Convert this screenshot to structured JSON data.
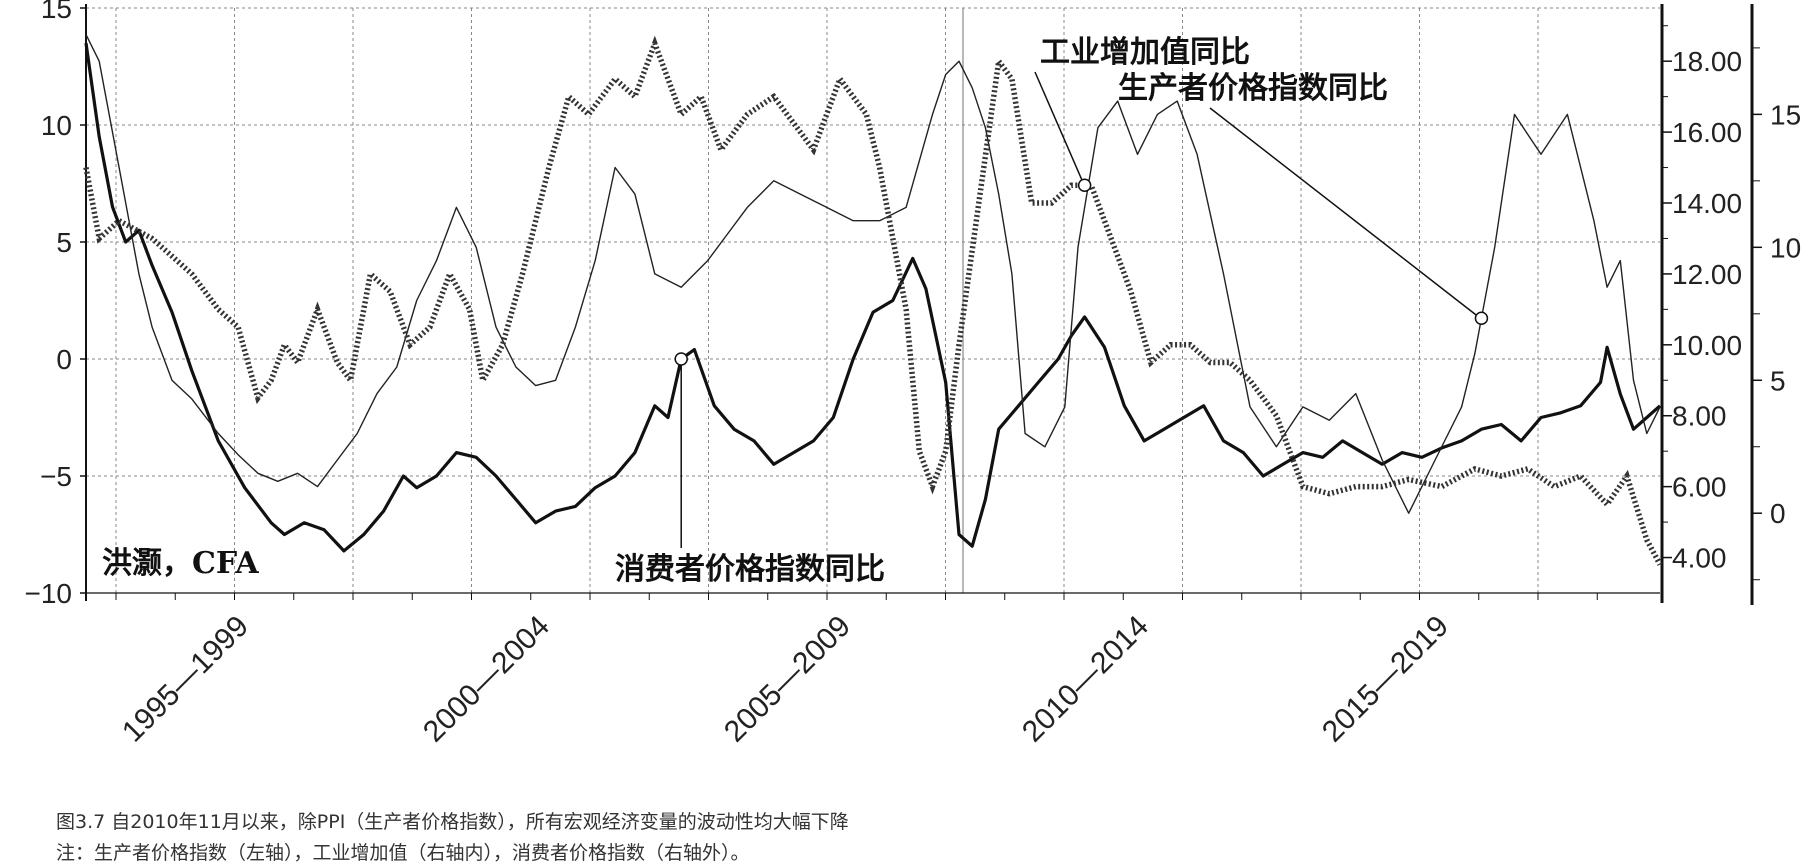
{
  "caption": {
    "title": "图3.7 自2010年11月以来，除PPI（生产者价格指数），所有宏观经济变量的波动性均大幅下降",
    "note": "注：生产者价格指数（左轴），工业增加值（右轴内），消费者价格指数（右轴外）。"
  },
  "chart_data": {
    "type": "line",
    "x_tick_labels": [
      "1995—1999",
      "2000—2004",
      "2005—2009",
      "2010—2014",
      "2015—2019"
    ],
    "left_axis": {
      "ticks": [
        15,
        10,
        5,
        0,
        -5,
        -10
      ],
      "ylim": [
        -10,
        15
      ]
    },
    "right_inner_axis": {
      "ticks": [
        "18.00",
        "16.00",
        "14.00",
        "12.00",
        "10.00",
        "8.00",
        "6.00",
        "4.00"
      ],
      "ylim": [
        3,
        19.5
      ]
    },
    "right_outer_axis": {
      "ticks": [
        15,
        10,
        5,
        0
      ],
      "ylim": [
        -3,
        19
      ]
    },
    "grid": true,
    "annotations": {
      "industrial": "工业增加值同比",
      "ppi": "生产者价格指数同比",
      "cpi": "消费者价格指数同比",
      "author": "洪灏，CFA"
    },
    "x_range": [
      1996.0,
      2019.8
    ],
    "series": [
      {
        "key": "ppi",
        "style": "thick",
        "axis": "left",
        "x": [
          1996.0,
          1996.2,
          1996.4,
          1996.6,
          1996.8,
          1997.0,
          1997.3,
          1997.6,
          1998.0,
          1998.4,
          1998.8,
          1999.0,
          1999.3,
          1999.6,
          1999.9,
          2000.2,
          2000.5,
          2000.8,
          2001.0,
          2001.3,
          2001.6,
          2001.9,
          2002.2,
          2002.5,
          2002.8,
          2003.1,
          2003.4,
          2003.7,
          2004.0,
          2004.3,
          2004.6,
          2004.8,
          2005.0,
          2005.2,
          2005.5,
          2005.8,
          2006.1,
          2006.4,
          2006.7,
          2007.0,
          2007.3,
          2007.6,
          2007.9,
          2008.2,
          2008.5,
          2008.7,
          2009.0,
          2009.2,
          2009.4,
          2009.6,
          2009.8,
          2010.1,
          2010.4,
          2010.7,
          2010.9,
          2011.1,
          2011.4,
          2011.7,
          2012.0,
          2012.3,
          2012.6,
          2012.9,
          2013.2,
          2013.5,
          2013.8,
          2014.1,
          2014.4,
          2014.7,
          2015.0,
          2015.3,
          2015.6,
          2015.9,
          2016.2,
          2016.5,
          2016.8,
          2017.1,
          2017.4,
          2017.7,
          2018.0,
          2018.3,
          2018.6,
          2018.9,
          2019.0,
          2019.2,
          2019.4,
          2019.6,
          2019.8
        ],
        "values": [
          13.5,
          9.5,
          6.5,
          5.0,
          5.5,
          4.0,
          2.0,
          -0.5,
          -3.5,
          -5.5,
          -7.0,
          -7.5,
          -7.0,
          -7.3,
          -8.2,
          -7.5,
          -6.5,
          -5.0,
          -5.5,
          -5.0,
          -4.0,
          -4.2,
          -5.0,
          -6.0,
          -7.0,
          -6.5,
          -6.3,
          -5.5,
          -5.0,
          -4.0,
          -2.0,
          -2.5,
          0.0,
          0.4,
          -2.0,
          -3.0,
          -3.5,
          -4.5,
          -4.0,
          -3.5,
          -2.5,
          0.0,
          2.0,
          2.5,
          4.3,
          3.0,
          -1.0,
          -7.5,
          -8.0,
          -6.0,
          -3.0,
          -2.0,
          -1.0,
          0.0,
          1.0,
          1.8,
          0.5,
          -2.0,
          -3.5,
          -3.0,
          -2.5,
          -2.0,
          -3.5,
          -4.0,
          -5.0,
          -4.5,
          -4.0,
          -4.2,
          -3.5,
          -4.0,
          -4.5,
          -4.0,
          -4.2,
          -3.8,
          -3.5,
          -3.0,
          -2.8,
          -3.5,
          -2.5,
          -2.3,
          -2.0,
          -1.0,
          0.5,
          -1.5,
          -3.0,
          -2.5,
          -2.0
        ]
      },
      {
        "key": "cpi",
        "style": "thin",
        "axis": "right_outer",
        "x": [
          1996.0,
          1996.2,
          1996.5,
          1996.8,
          1997.0,
          1997.3,
          1997.6,
          1998.0,
          1998.3,
          1998.6,
          1998.9,
          1999.2,
          1999.5,
          1999.8,
          2000.1,
          2000.4,
          2000.7,
          2001.0,
          2001.3,
          2001.6,
          2001.9,
          2002.2,
          2002.5,
          2002.8,
          2003.1,
          2003.4,
          2003.7,
          2004.0,
          2004.3,
          2004.6,
          2005.0,
          2005.4,
          2005.7,
          2006.0,
          2006.4,
          2006.8,
          2007.2,
          2007.6,
          2008.0,
          2008.4,
          2008.8,
          2009.0,
          2009.2,
          2009.4,
          2009.6,
          2009.8,
          2010.0,
          2010.2,
          2010.5,
          2010.8,
          2011.0,
          2011.3,
          2011.6,
          2011.9,
          2012.2,
          2012.5,
          2012.8,
          2013.2,
          2013.6,
          2014.0,
          2014.4,
          2014.8,
          2015.2,
          2015.6,
          2016.0,
          2016.4,
          2016.8,
          2017.0,
          2017.3,
          2017.6,
          2018.0,
          2018.4,
          2018.8,
          2019.0,
          2019.2,
          2019.4,
          2019.6,
          2019.8
        ],
        "values": [
          18.0,
          17.0,
          13.0,
          9.0,
          7.0,
          5.0,
          4.3,
          3.0,
          2.2,
          1.5,
          1.2,
          1.5,
          1.0,
          2.0,
          3.0,
          4.5,
          5.5,
          8.0,
          9.5,
          11.5,
          10.0,
          7.0,
          5.5,
          4.8,
          5.0,
          7.0,
          9.5,
          13.0,
          12.0,
          9.0,
          8.5,
          9.5,
          10.5,
          11.5,
          12.5,
          12.0,
          11.5,
          11.0,
          11.0,
          11.5,
          15.0,
          16.5,
          17.0,
          16.0,
          14.5,
          12.0,
          9.0,
          3.0,
          2.5,
          4.0,
          10.0,
          14.5,
          15.5,
          13.5,
          15.0,
          15.5,
          13.5,
          9.0,
          4.0,
          2.5,
          4.0,
          3.5,
          4.5,
          2.0,
          0.0,
          2.0,
          4.0,
          6.0,
          10.0,
          15.0,
          13.5,
          15.0,
          11.0,
          8.5,
          9.5,
          5.0,
          3.0,
          4.0
        ]
      },
      {
        "key": "industrial",
        "style": "dotted",
        "axis": "right_inner",
        "x": [
          1996.0,
          1996.2,
          1996.5,
          1996.8,
          1997.0,
          1997.3,
          1997.6,
          1998.0,
          1998.3,
          1998.6,
          1998.8,
          1999.0,
          1999.2,
          1999.5,
          1999.8,
          2000.0,
          2000.3,
          2000.6,
          2000.9,
          2001.2,
          2001.5,
          2001.8,
          2002.0,
          2002.3,
          2002.6,
          2003.0,
          2003.3,
          2003.6,
          2004.0,
          2004.3,
          2004.6,
          2005.0,
          2005.3,
          2005.6,
          2006.0,
          2006.4,
          2006.8,
          2007.0,
          2007.4,
          2007.8,
          2008.0,
          2008.4,
          2008.6,
          2008.8,
          2009.0,
          2009.2,
          2009.5,
          2009.8,
          2010.0,
          2010.3,
          2010.6,
          2010.9,
          2011.2,
          2011.5,
          2011.8,
          2012.1,
          2012.4,
          2012.7,
          2013.0,
          2013.3,
          2013.6,
          2014.0,
          2014.4,
          2014.8,
          2015.2,
          2015.6,
          2016.0,
          2016.5,
          2017.0,
          2017.4,
          2017.8,
          2018.2,
          2018.6,
          2019.0,
          2019.3,
          2019.6,
          2019.8
        ],
        "values": [
          15.0,
          13.0,
          13.5,
          13.2,
          13.0,
          12.5,
          12.0,
          11.0,
          10.5,
          8.5,
          9.0,
          10.0,
          9.5,
          11.0,
          9.5,
          9.0,
          12.0,
          11.5,
          10.0,
          10.5,
          12.0,
          11.0,
          9.0,
          10.0,
          12.0,
          15.0,
          17.0,
          16.5,
          17.5,
          17.0,
          18.5,
          16.5,
          17.0,
          15.5,
          16.5,
          17.0,
          16.0,
          15.5,
          17.5,
          16.5,
          15.0,
          11.0,
          7.0,
          6.0,
          7.0,
          10.0,
          14.0,
          18.0,
          17.5,
          14.0,
          14.0,
          14.5,
          14.5,
          13.0,
          11.5,
          9.5,
          10.0,
          10.0,
          9.5,
          9.5,
          9.0,
          8.0,
          6.0,
          5.8,
          6.0,
          6.0,
          6.2,
          6.0,
          6.5,
          6.3,
          6.5,
          6.0,
          6.3,
          5.5,
          6.3,
          4.5,
          3.8
        ]
      }
    ],
    "markers": [
      {
        "x": 2005.0,
        "series": "ppi"
      },
      {
        "x": 2011.1,
        "series": "industrial"
      },
      {
        "x": 2017.1,
        "series": "cpi"
      }
    ]
  }
}
